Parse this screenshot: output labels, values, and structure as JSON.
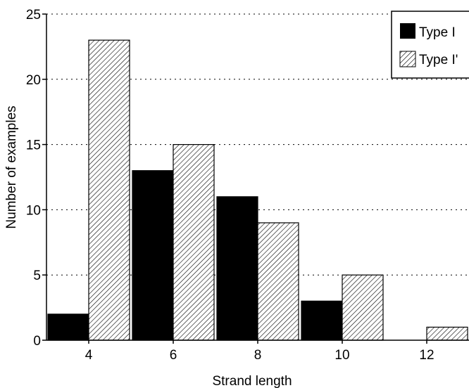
{
  "chart_data": {
    "type": "bar",
    "title": "",
    "xlabel": "Strand length",
    "ylabel": "Number of examples",
    "categories": [
      "4",
      "6",
      "8",
      "10",
      "12"
    ],
    "series": [
      {
        "name": "Type I",
        "values": [
          2,
          13,
          11,
          3,
          0
        ],
        "fill": "solid",
        "color": "#000000"
      },
      {
        "name": "Type I'",
        "values": [
          23,
          15,
          9,
          5,
          1
        ],
        "fill": "hatched",
        "color": "#ffffff"
      }
    ],
    "ylim": [
      0,
      25
    ],
    "yticks": [
      0,
      5,
      10,
      15,
      20,
      25
    ],
    "grid": "horizontal dotted",
    "legend": "top-right"
  }
}
